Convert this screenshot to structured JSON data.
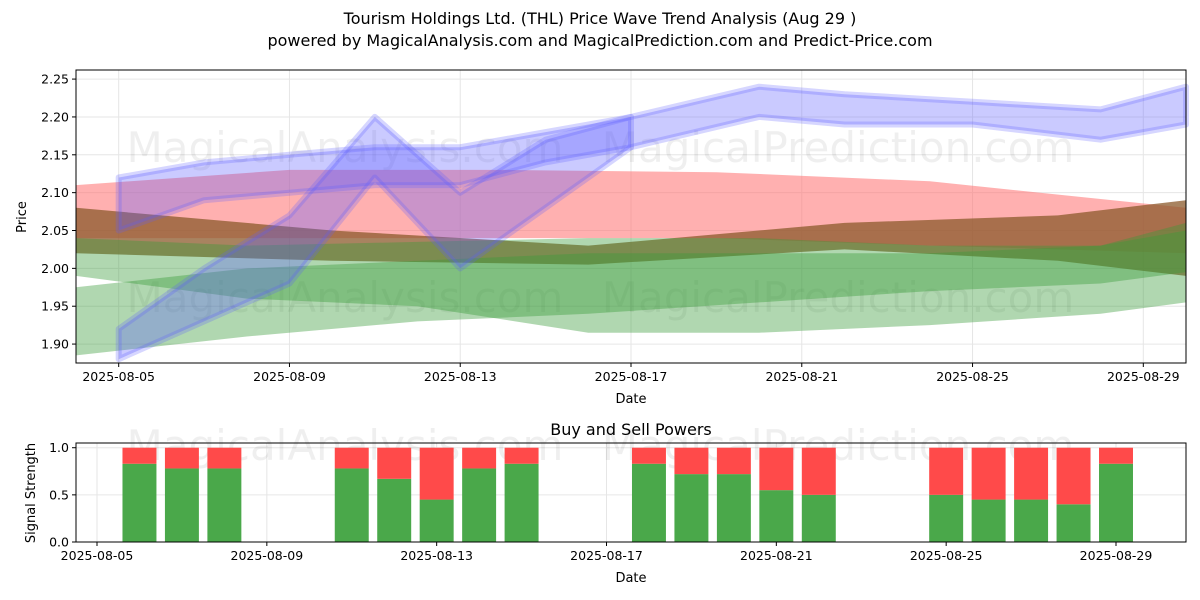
{
  "title": "Tourism Holdings Ltd. (THL) Price Wave Trend Analysis (Aug 29 )",
  "subtitle": "powered by MagicalAnalysis.com and MagicalPrediction.com and Predict-Price.com",
  "watermarks": [
    "MagicalAnalysis.com",
    "MagicalPrediction.com"
  ],
  "colors": {
    "blue_band": "#5a5aff",
    "green_band": "#3a9a3a",
    "red_band": "#ff7070",
    "brown_band": "#8b5a2b",
    "buy": "#4aa84a",
    "sell": "#ff4a4a"
  },
  "chart_data": [
    {
      "type": "area",
      "title": "",
      "xlabel": "Date",
      "ylabel": "Price",
      "xlim": [
        "2025-08-04",
        "2025-08-30"
      ],
      "ylim": [
        1.875,
        2.262
      ],
      "x_ticks": [
        "2025-08-05",
        "2025-08-09",
        "2025-08-13",
        "2025-08-17",
        "2025-08-21",
        "2025-08-25",
        "2025-08-29"
      ],
      "y_ticks": [
        1.9,
        1.95,
        2.0,
        2.05,
        2.1,
        2.15,
        2.2,
        2.25
      ],
      "grid": true,
      "series": [
        {
          "color": "#ff7070",
          "x": [
            "2025-08-04",
            "2025-08-09",
            "2025-08-14",
            "2025-08-19",
            "2025-08-24",
            "2025-08-30"
          ],
          "upper": [
            2.11,
            2.13,
            2.13,
            2.127,
            2.115,
            2.08
          ],
          "lower": [
            2.04,
            2.04,
            2.04,
            2.04,
            2.03,
            2.02
          ]
        },
        {
          "color": "#8b5a2b",
          "x": [
            "2025-08-04",
            "2025-08-10",
            "2025-08-16",
            "2025-08-22",
            "2025-08-27",
            "2025-08-30"
          ],
          "upper": [
            2.08,
            2.05,
            2.03,
            2.06,
            2.07,
            2.09
          ],
          "lower": [
            2.02,
            2.01,
            2.005,
            2.025,
            2.01,
            1.99
          ]
        },
        {
          "color": "#3a9a3a",
          "x": [
            "2025-08-04",
            "2025-08-08",
            "2025-08-12",
            "2025-08-16",
            "2025-08-20",
            "2025-08-24",
            "2025-08-28",
            "2025-08-30"
          ],
          "upper": [
            2.04,
            2.03,
            2.035,
            2.04,
            2.04,
            2.03,
            2.03,
            2.06
          ],
          "lower": [
            1.99,
            1.96,
            1.95,
            1.915,
            1.915,
            1.925,
            1.94,
            1.955
          ]
        },
        {
          "color": "#3a9a3a",
          "x": [
            "2025-08-04",
            "2025-08-08",
            "2025-08-12",
            "2025-08-16",
            "2025-08-20",
            "2025-08-24",
            "2025-08-28",
            "2025-08-30"
          ],
          "upper": [
            1.975,
            2.0,
            2.01,
            2.02,
            2.02,
            2.02,
            2.03,
            2.05
          ],
          "lower": [
            1.885,
            1.91,
            1.93,
            1.94,
            1.955,
            1.97,
            1.98,
            1.995
          ]
        },
        {
          "color": "#5a5aff",
          "x": [
            "2025-08-05",
            "2025-08-07",
            "2025-08-09",
            "2025-08-11",
            "2025-08-13",
            "2025-08-15",
            "2025-08-17",
            "2025-08-20",
            "2025-08-22",
            "2025-08-25",
            "2025-08-28",
            "2025-08-30"
          ],
          "upper": [
            2.12,
            2.14,
            2.15,
            2.16,
            2.16,
            2.18,
            2.2,
            2.24,
            2.23,
            2.22,
            2.21,
            2.24
          ],
          "lower": [
            2.05,
            2.09,
            2.1,
            2.11,
            2.11,
            2.14,
            2.16,
            2.2,
            2.19,
            2.19,
            2.17,
            2.19
          ]
        },
        {
          "color": "#5a5aff",
          "x": [
            "2025-08-05",
            "2025-08-07",
            "2025-08-09",
            "2025-08-11",
            "2025-08-13",
            "2025-08-15",
            "2025-08-17"
          ],
          "upper": [
            1.92,
            2.0,
            2.07,
            2.2,
            2.1,
            2.17,
            2.2
          ],
          "lower": [
            1.88,
            1.93,
            1.98,
            2.12,
            2.0,
            2.08,
            2.16
          ]
        }
      ]
    },
    {
      "type": "bar",
      "title": "Buy and Sell Powers",
      "xlabel": "Date",
      "ylabel": "Signal Strength",
      "ylim": [
        0,
        1.05
      ],
      "y_ticks": [
        0.0,
        0.5,
        1.0
      ],
      "x_ticks": [
        "2025-08-05",
        "2025-08-09",
        "2025-08-13",
        "2025-08-17",
        "2025-08-21",
        "2025-08-25",
        "2025-08-29"
      ],
      "grid": true,
      "dates": [
        "2025-08-06",
        "2025-08-07",
        "2025-08-08",
        "2025-08-11",
        "2025-08-12",
        "2025-08-13",
        "2025-08-14",
        "2025-08-15",
        "2025-08-18",
        "2025-08-19",
        "2025-08-20",
        "2025-08-21",
        "2025-08-22",
        "2025-08-25",
        "2025-08-26",
        "2025-08-27",
        "2025-08-28",
        "2025-08-29"
      ],
      "series": [
        {
          "name": "Buy",
          "values": [
            0.83,
            0.78,
            0.78,
            0.78,
            0.67,
            0.45,
            0.78,
            0.83,
            0.83,
            0.72,
            0.72,
            0.55,
            0.5,
            0.5,
            0.45,
            0.45,
            0.4,
            0.83
          ]
        },
        {
          "name": "Sell",
          "values": [
            0.17,
            0.22,
            0.22,
            0.22,
            0.33,
            0.55,
            0.22,
            0.17,
            0.17,
            0.28,
            0.28,
            0.45,
            0.5,
            0.5,
            0.55,
            0.55,
            0.6,
            0.17
          ]
        }
      ]
    }
  ]
}
